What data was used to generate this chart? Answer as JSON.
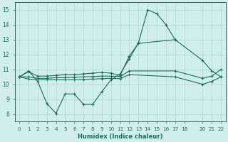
{
  "bg_color": "#d0eeea",
  "grid_color": "#b0d8d2",
  "line_color": "#1a6b60",
  "xlim": [
    -0.5,
    22.5
  ],
  "ylim": [
    7.5,
    15.5
  ],
  "xticks": [
    0,
    1,
    2,
    3,
    4,
    5,
    6,
    7,
    8,
    9,
    10,
    11,
    12,
    13,
    14,
    15,
    16,
    17,
    18,
    20,
    21,
    22
  ],
  "yticks": [
    8,
    9,
    10,
    11,
    12,
    13,
    14,
    15
  ],
  "xlabel": "Humidex (Indice chaleur)",
  "line1_x": [
    0,
    1,
    2,
    3,
    4,
    5,
    6,
    7,
    8,
    9,
    10,
    11,
    12,
    13,
    14,
    15,
    16,
    17
  ],
  "line1_y": [
    10.5,
    10.9,
    10.2,
    8.7,
    8.05,
    9.35,
    9.35,
    8.65,
    8.65,
    9.5,
    10.3,
    10.7,
    11.7,
    12.8,
    15.0,
    14.75,
    14.0,
    13.0
  ],
  "line2_x": [
    0,
    1,
    2,
    3,
    4,
    5,
    6,
    7,
    8,
    9,
    10,
    11,
    12,
    13,
    17,
    20,
    21,
    22
  ],
  "line2_y": [
    10.5,
    10.85,
    10.55,
    10.55,
    10.6,
    10.65,
    10.65,
    10.7,
    10.75,
    10.8,
    10.75,
    10.6,
    11.9,
    12.75,
    13.0,
    11.6,
    10.9,
    10.5
  ],
  "line3_x": [
    0,
    1,
    2,
    3,
    4,
    5,
    6,
    7,
    8,
    9,
    10,
    11,
    12,
    17,
    20,
    21,
    22
  ],
  "line3_y": [
    10.5,
    10.5,
    10.4,
    10.4,
    10.45,
    10.45,
    10.48,
    10.5,
    10.52,
    10.55,
    10.55,
    10.52,
    10.9,
    10.9,
    10.4,
    10.55,
    11.0
  ],
  "line4_x": [
    0,
    1,
    2,
    3,
    4,
    5,
    6,
    7,
    8,
    9,
    10,
    11,
    12,
    17,
    20,
    21,
    22
  ],
  "line4_y": [
    10.5,
    10.35,
    10.3,
    10.3,
    10.3,
    10.3,
    10.3,
    10.32,
    10.35,
    10.38,
    10.4,
    10.38,
    10.65,
    10.5,
    10.0,
    10.2,
    10.5
  ]
}
